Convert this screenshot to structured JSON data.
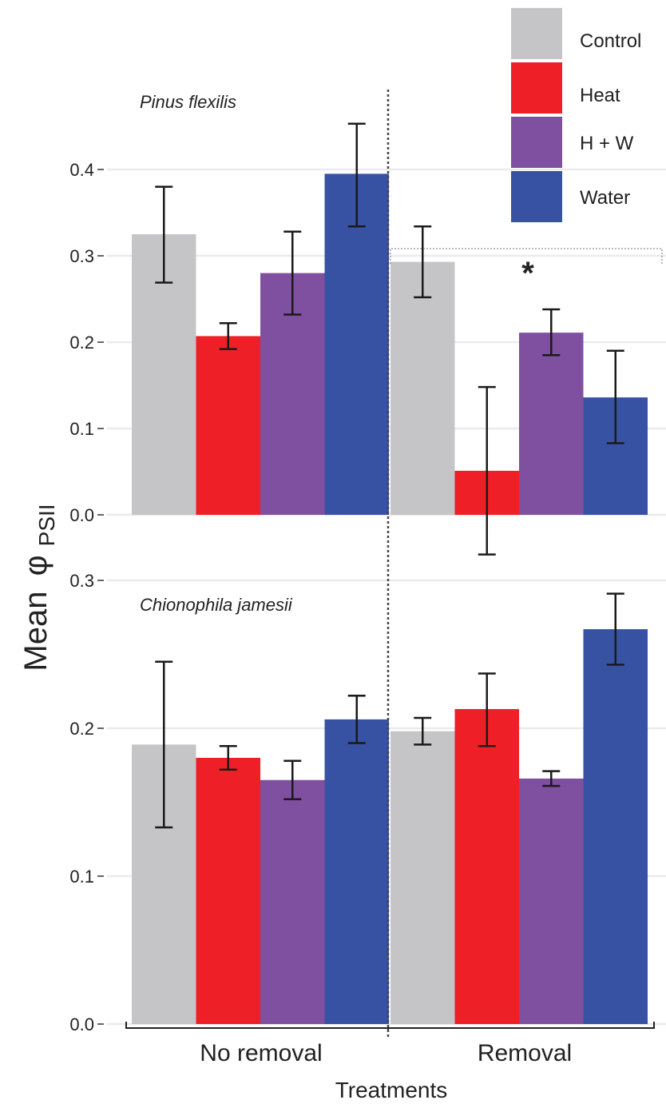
{
  "chart_data": {
    "type": "bar",
    "ylabel": "Mean",
    "ylabel_symbol": "φ",
    "ylabel_subscript": "PSII",
    "xlabel": "Treatments",
    "categories": [
      "No removal",
      "Removal"
    ],
    "legend": {
      "placement": "top-right",
      "entries": [
        {
          "name": "Control",
          "color": "#C5C5C7"
        },
        {
          "name": "Heat",
          "color": "#EE1F26"
        },
        {
          "name": "H + W",
          "color": "#7F50A0"
        },
        {
          "name": "Water",
          "color": "#3852A3"
        }
      ]
    },
    "grid": true,
    "panels": [
      {
        "label": "Pinus flexilis",
        "ylim": [
          0,
          0.4
        ],
        "yticks": [
          "0.0",
          "0.1",
          "0.2",
          "0.3",
          "0.4"
        ],
        "annotation": "*",
        "series": [
          {
            "name": "Control",
            "values": [
              0.325,
              0.293
            ],
            "err_low": [
              0.269,
              0.252
            ],
            "err_high": [
              0.38,
              0.334
            ]
          },
          {
            "name": "Heat",
            "values": [
              0.207,
              0.051
            ],
            "err_low": [
              0.192,
              -0.046
            ],
            "err_high": [
              0.222,
              0.148
            ]
          },
          {
            "name": "H + W",
            "values": [
              0.28,
              0.211
            ],
            "err_low": [
              0.232,
              0.185
            ],
            "err_high": [
              0.328,
              0.238
            ]
          },
          {
            "name": "Water",
            "values": [
              0.395,
              0.136
            ],
            "err_low": [
              0.334,
              0.083
            ],
            "err_high": [
              0.453,
              0.19
            ]
          }
        ]
      },
      {
        "label": "Chionophila jamesii",
        "ylim": [
          0,
          0.3
        ],
        "yticks": [
          "0.0",
          "0.1",
          "0.2",
          "0.3"
        ],
        "series": [
          {
            "name": "Control",
            "values": [
              0.189,
              0.198
            ],
            "err_low": [
              0.133,
              0.189
            ],
            "err_high": [
              0.245,
              0.207
            ]
          },
          {
            "name": "Heat",
            "values": [
              0.18,
              0.213
            ],
            "err_low": [
              0.172,
              0.188
            ],
            "err_high": [
              0.188,
              0.237
            ]
          },
          {
            "name": "H + W",
            "values": [
              0.165,
              0.166
            ],
            "err_low": [
              0.152,
              0.161
            ],
            "err_high": [
              0.178,
              0.171
            ]
          },
          {
            "name": "Water",
            "values": [
              0.206,
              0.267
            ],
            "err_low": [
              0.19,
              0.243
            ],
            "err_high": [
              0.222,
              0.291
            ]
          }
        ]
      }
    ]
  }
}
